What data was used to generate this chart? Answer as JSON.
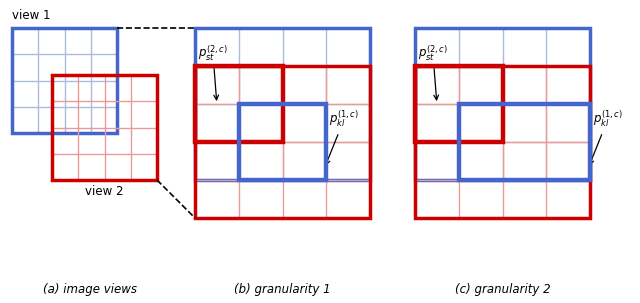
{
  "fig_width": 6.4,
  "fig_height": 3.03,
  "dpi": 100,
  "bg_color": "#ffffff",
  "red_color": "#cc0000",
  "blue_color": "#4466cc",
  "blue_light": "#aabbdd",
  "red_light": "#ee9999",
  "caption_a": "(a) image views",
  "caption_b": "(b) granularity 1",
  "caption_c": "(c) granularity 2",
  "label_view1": "view 1",
  "label_view2": "view 2",
  "lw_thick": 2.5,
  "lw_thin": 1.0,
  "lw_highlight": 3.2
}
